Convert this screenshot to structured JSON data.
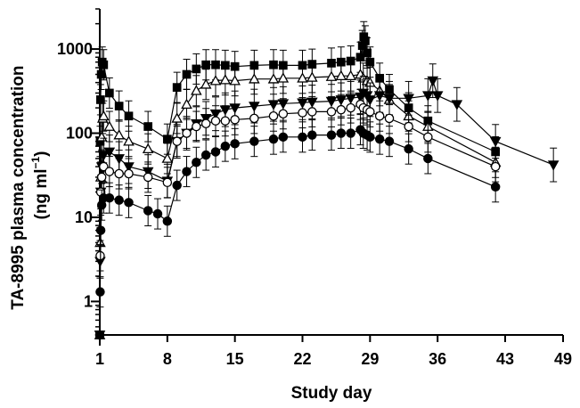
{
  "chart_data": {
    "type": "line",
    "xlabel": "Study day",
    "ylabel_main": "TA-8995 plasma concentration",
    "ylabel_unit_prefix": "(ng ml",
    "ylabel_unit_sup": "−1",
    "ylabel_unit_suffix": ")",
    "yscale": "log",
    "xlim": [
      1,
      49
    ],
    "ylim": [
      0.4,
      3000
    ],
    "x_ticks": [
      1,
      8,
      15,
      22,
      29,
      36,
      43,
      49
    ],
    "x_tick_labels": [
      "1",
      "8",
      "15",
      "22",
      "29",
      "36",
      "43",
      "49"
    ],
    "y_ticks": [
      1,
      10,
      100,
      1000
    ],
    "y_tick_labels": [
      "1",
      "10",
      "100",
      "1000"
    ],
    "grid": false,
    "legend": "none",
    "series": [
      {
        "marker": "filled-square",
        "points": [
          [
            1,
            0.4
          ],
          [
            1.04,
            80
          ],
          [
            1.08,
            250
          ],
          [
            1.15,
            500
          ],
          [
            1.25,
            700
          ],
          [
            1.4,
            650
          ],
          [
            2,
            300
          ],
          [
            3,
            210
          ],
          [
            4,
            160
          ],
          [
            6,
            120
          ],
          [
            8,
            85
          ],
          [
            9,
            350
          ],
          [
            10,
            500
          ],
          [
            11,
            580
          ],
          [
            12,
            650
          ],
          [
            13,
            650
          ],
          [
            14,
            640
          ],
          [
            15,
            620
          ],
          [
            17,
            640
          ],
          [
            19,
            650
          ],
          [
            20,
            640
          ],
          [
            22,
            640
          ],
          [
            23,
            660
          ],
          [
            25,
            680
          ],
          [
            26,
            700
          ],
          [
            27,
            720
          ],
          [
            28,
            800
          ],
          [
            28.2,
            1100
          ],
          [
            28.35,
            1400
          ],
          [
            28.5,
            1250
          ],
          [
            28.7,
            900
          ],
          [
            29,
            700
          ],
          [
            30,
            450
          ],
          [
            31,
            330
          ],
          [
            33,
            200
          ],
          [
            35,
            140
          ],
          [
            42,
            60
          ]
        ],
        "err": 0.18
      },
      {
        "marker": "open-triangle-up",
        "points": [
          [
            1,
            0.4
          ],
          [
            1.04,
            5
          ],
          [
            1.1,
            30
          ],
          [
            1.2,
            90
          ],
          [
            1.3,
            150
          ],
          [
            1.4,
            160
          ],
          [
            2,
            120
          ],
          [
            3,
            95
          ],
          [
            4,
            80
          ],
          [
            6,
            65
          ],
          [
            8,
            50
          ],
          [
            9,
            150
          ],
          [
            10,
            220
          ],
          [
            11,
            320
          ],
          [
            12,
            380
          ],
          [
            13,
            420
          ],
          [
            14,
            430
          ],
          [
            15,
            420
          ],
          [
            17,
            440
          ],
          [
            19,
            440
          ],
          [
            20,
            450
          ],
          [
            22,
            450
          ],
          [
            23,
            460
          ],
          [
            25,
            470
          ],
          [
            26,
            480
          ],
          [
            27,
            480
          ],
          [
            28,
            500
          ],
          [
            28.3,
            450
          ],
          [
            28.7,
            420
          ],
          [
            29,
            400
          ],
          [
            30,
            320
          ],
          [
            31,
            250
          ],
          [
            33,
            160
          ],
          [
            35,
            120
          ],
          [
            42,
            45
          ]
        ],
        "err": 0.18
      },
      {
        "marker": "filled-triangle-down",
        "points": [
          [
            1,
            0.4
          ],
          [
            1.04,
            3
          ],
          [
            1.1,
            20
          ],
          [
            1.2,
            40
          ],
          [
            1.4,
            55
          ],
          [
            2,
            60
          ],
          [
            3,
            50
          ],
          [
            4,
            40
          ],
          [
            6,
            35
          ],
          [
            8,
            27
          ],
          [
            9,
            80
          ],
          [
            10,
            100
          ],
          [
            11,
            130
          ],
          [
            12,
            150
          ],
          [
            13,
            170
          ],
          [
            14,
            190
          ],
          [
            15,
            200
          ],
          [
            17,
            210
          ],
          [
            19,
            220
          ],
          [
            20,
            225
          ],
          [
            22,
            230
          ],
          [
            23,
            235
          ],
          [
            25,
            240
          ],
          [
            26,
            250
          ],
          [
            27,
            260
          ],
          [
            28,
            270
          ],
          [
            28.3,
            300
          ],
          [
            28.7,
            280
          ],
          [
            29,
            250
          ],
          [
            30,
            280
          ],
          [
            31,
            260
          ],
          [
            33,
            260
          ],
          [
            35,
            280
          ],
          [
            35.5,
            420
          ],
          [
            36,
            280
          ],
          [
            38,
            220
          ],
          [
            42,
            80
          ],
          [
            48,
            42
          ]
        ],
        "err": 0.2
      },
      {
        "marker": "open-circle",
        "points": [
          [
            1,
            0.4
          ],
          [
            1.04,
            3.5
          ],
          [
            1.1,
            20
          ],
          [
            1.2,
            30
          ],
          [
            1.4,
            40
          ],
          [
            2,
            35
          ],
          [
            3,
            33
          ],
          [
            4,
            33
          ],
          [
            6,
            30
          ],
          [
            8,
            26
          ],
          [
            9,
            80
          ],
          [
            10,
            100
          ],
          [
            11,
            120
          ],
          [
            12,
            130
          ],
          [
            13,
            140
          ],
          [
            14,
            140
          ],
          [
            15,
            145
          ],
          [
            17,
            150
          ],
          [
            19,
            160
          ],
          [
            20,
            170
          ],
          [
            22,
            175
          ],
          [
            23,
            180
          ],
          [
            25,
            180
          ],
          [
            26,
            190
          ],
          [
            27,
            200
          ],
          [
            28,
            220
          ],
          [
            28.3,
            200
          ],
          [
            28.7,
            190
          ],
          [
            29,
            180
          ],
          [
            30,
            160
          ],
          [
            31,
            150
          ],
          [
            33,
            120
          ],
          [
            35,
            90
          ],
          [
            42,
            40
          ]
        ],
        "err": 0.18
      },
      {
        "marker": "filled-circle",
        "points": [
          [
            1,
            0.4
          ],
          [
            1.04,
            1.3
          ],
          [
            1.1,
            7
          ],
          [
            1.2,
            14
          ],
          [
            1.4,
            17
          ],
          [
            2,
            17
          ],
          [
            3,
            16
          ],
          [
            4,
            15
          ],
          [
            6,
            12
          ],
          [
            7,
            11
          ],
          [
            8,
            9
          ],
          [
            9,
            24
          ],
          [
            10,
            35
          ],
          [
            11,
            45
          ],
          [
            12,
            55
          ],
          [
            13,
            60
          ],
          [
            14,
            70
          ],
          [
            15,
            75
          ],
          [
            17,
            80
          ],
          [
            19,
            85
          ],
          [
            20,
            90
          ],
          [
            22,
            90
          ],
          [
            23,
            95
          ],
          [
            25,
            95
          ],
          [
            26,
            100
          ],
          [
            27,
            100
          ],
          [
            28,
            110
          ],
          [
            28.3,
            100
          ],
          [
            28.7,
            95
          ],
          [
            29,
            90
          ],
          [
            30,
            85
          ],
          [
            31,
            80
          ],
          [
            33,
            65
          ],
          [
            35,
            50
          ],
          [
            42,
            23
          ]
        ],
        "err": 0.18
      }
    ]
  }
}
